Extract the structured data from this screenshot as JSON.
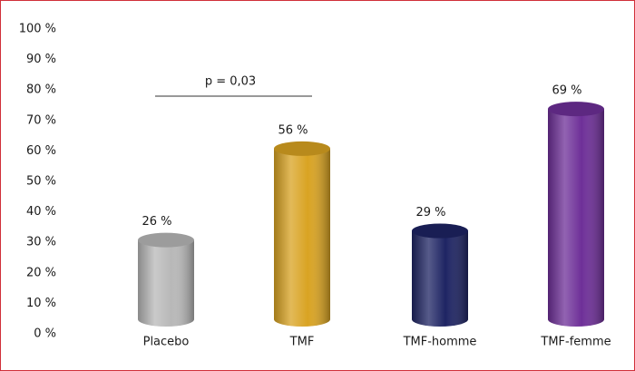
{
  "chart_data": {
    "type": "bar",
    "categories": [
      "Placebo",
      "TMF",
      "TMF-homme",
      "TMF-femme"
    ],
    "values": [
      26,
      56,
      29,
      69
    ],
    "value_labels": [
      "26 %",
      "56 %",
      "29 %",
      "69 %"
    ],
    "colors": [
      "#b8b8b8",
      "#d9a322",
      "#1e2463",
      "#6e2f98"
    ],
    "ylim": [
      0,
      100
    ],
    "yticks": [
      {
        "value": 0,
        "label": "0 %"
      },
      {
        "value": 10,
        "label": "10 %"
      },
      {
        "value": 20,
        "label": "20 %"
      },
      {
        "value": 30,
        "label": "30 %"
      },
      {
        "value": 40,
        "label": "40 %"
      },
      {
        "value": 50,
        "label": "50 %"
      },
      {
        "value": 60,
        "label": "60 %"
      },
      {
        "value": 70,
        "label": "70 %"
      },
      {
        "value": 80,
        "label": "80 %"
      },
      {
        "value": 90,
        "label": "90 %"
      },
      {
        "value": 100,
        "label": "100 %"
      }
    ],
    "grid": false,
    "annotation": "p = 0,03"
  }
}
